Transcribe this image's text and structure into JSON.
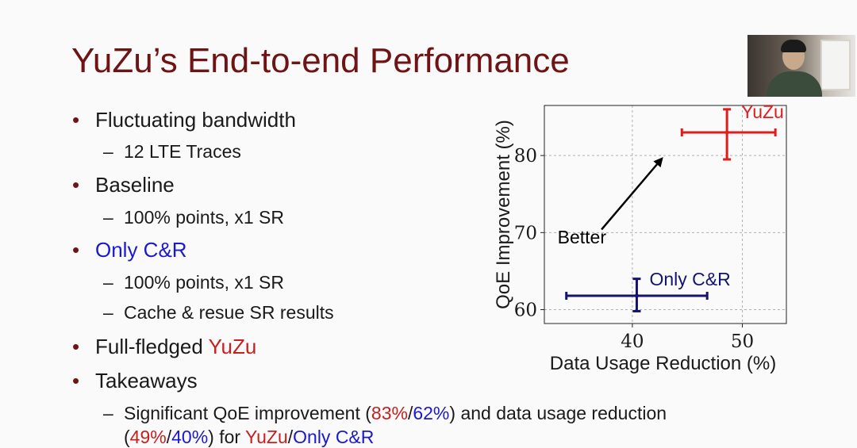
{
  "slide": {
    "title": "YuZu’s End-to-end Performance"
  },
  "bullets": {
    "b1": "Fluctuating bandwidth",
    "b1_sub1": "12 LTE Traces",
    "b2": "Baseline",
    "b2_sub1": "100% points, x1 SR",
    "b3": "Only C&R",
    "b3_sub1": "100% points, x1 SR",
    "b3_sub2": "Cache & resue SR results",
    "b4_prefix": "Full-fledged ",
    "b4_yuzu": "YuZu",
    "b5": "Takeaways",
    "t_line1_a": "Significant QoE improvement (",
    "t_line1_b": "83%",
    "t_line1_c": "/",
    "t_line1_d": "62%",
    "t_line1_e": ") and data usage reduction",
    "t_line2_a": "(",
    "t_line2_b": "49%",
    "t_line2_c": "/",
    "t_line2_d": "40%",
    "t_line2_e": ") for ",
    "t_line2_f": "YuZu",
    "t_line2_g": "/",
    "t_line2_h": "Only C&R",
    "bullet_glyph": "•",
    "dash_glyph": "–"
  },
  "colors": {
    "title": "#6e1414",
    "yuzu": "#e01c1c",
    "only_cr": "#141470"
  },
  "chart_data": {
    "type": "scatter",
    "xlabel": "Data Usage Reduction (%)",
    "ylabel": "QoE Improvement (%)",
    "xlim": [
      32,
      54
    ],
    "ylim": [
      58.2,
      86.5
    ],
    "xticks": [
      40,
      50
    ],
    "yticks": [
      60,
      70,
      80
    ],
    "xtick_labels": [
      "40",
      "50"
    ],
    "ytick_labels": [
      "60",
      "70",
      "80"
    ],
    "grid": true,
    "series": [
      {
        "name": "YuZu",
        "x": 48.6,
        "y": 83.0,
        "x_err": [
          44.5,
          53.0
        ],
        "y_err": [
          79.5,
          86.0
        ],
        "color": "#e01c1c"
      },
      {
        "name": "Only C&R",
        "x": 40.4,
        "y": 61.8,
        "x_err": [
          34.0,
          46.8
        ],
        "y_err": [
          59.8,
          64.0
        ],
        "color": "#141470"
      }
    ],
    "annotation": {
      "text": "Better"
    }
  }
}
